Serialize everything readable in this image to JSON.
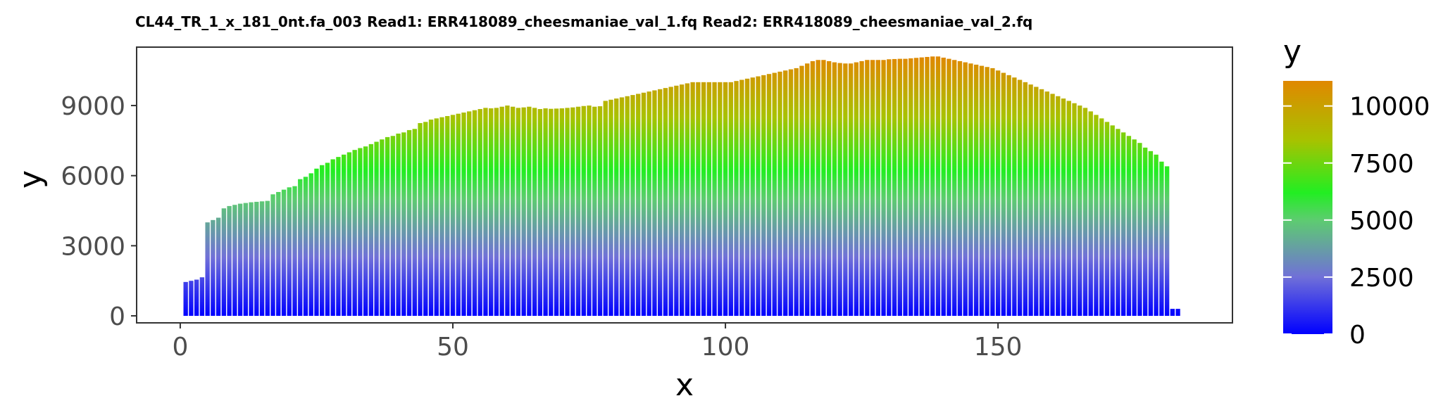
{
  "chart_data": {
    "type": "bar",
    "title": "CL44_TR_1_x_181_0nt.fa_003 Read1: ERR418089_cheesmaniae_val_1.fq Read2: ERR418089_cheesmaniae_val_2.fq",
    "xlabel": "x",
    "ylabel": "y",
    "xlim": [
      -8,
      193
    ],
    "ylim": [
      -300,
      11500
    ],
    "x_ticks": [
      0,
      50,
      100,
      150
    ],
    "y_ticks": [
      0,
      3000,
      6000,
      9000
    ],
    "grid": false,
    "x": [
      1,
      2,
      3,
      4,
      5,
      6,
      7,
      8,
      9,
      10,
      11,
      12,
      13,
      14,
      15,
      16,
      17,
      18,
      19,
      20,
      21,
      22,
      23,
      24,
      25,
      26,
      27,
      28,
      29,
      30,
      31,
      32,
      33,
      34,
      35,
      36,
      37,
      38,
      39,
      40,
      41,
      42,
      43,
      44,
      45,
      46,
      47,
      48,
      49,
      50,
      51,
      52,
      53,
      54,
      55,
      56,
      57,
      58,
      59,
      60,
      61,
      62,
      63,
      64,
      65,
      66,
      67,
      68,
      69,
      70,
      71,
      72,
      73,
      74,
      75,
      76,
      77,
      78,
      79,
      80,
      81,
      82,
      83,
      84,
      85,
      86,
      87,
      88,
      89,
      90,
      91,
      92,
      93,
      94,
      95,
      96,
      97,
      98,
      99,
      100,
      101,
      102,
      103,
      104,
      105,
      106,
      107,
      108,
      109,
      110,
      111,
      112,
      113,
      114,
      115,
      116,
      117,
      118,
      119,
      120,
      121,
      122,
      123,
      124,
      125,
      126,
      127,
      128,
      129,
      130,
      131,
      132,
      133,
      134,
      135,
      136,
      137,
      138,
      139,
      140,
      141,
      142,
      143,
      144,
      145,
      146,
      147,
      148,
      149,
      150,
      151,
      152,
      153,
      154,
      155,
      156,
      157,
      158,
      159,
      160,
      161,
      162,
      163,
      164,
      165,
      166,
      167,
      168,
      169,
      170,
      171,
      172,
      173,
      174,
      175,
      176,
      177,
      178,
      179,
      180,
      181,
      182,
      183
    ],
    "values": [
      1450,
      1500,
      1550,
      1650,
      4000,
      4100,
      4200,
      4600,
      4700,
      4750,
      4800,
      4830,
      4860,
      4880,
      4900,
      4920,
      5200,
      5300,
      5400,
      5500,
      5550,
      5850,
      5950,
      6100,
      6300,
      6450,
      6550,
      6700,
      6800,
      6900,
      7000,
      7100,
      7180,
      7250,
      7350,
      7450,
      7550,
      7650,
      7700,
      7800,
      7850,
      7950,
      8000,
      8250,
      8300,
      8400,
      8450,
      8500,
      8550,
      8600,
      8650,
      8700,
      8750,
      8800,
      8850,
      8900,
      8880,
      8900,
      8950,
      9000,
      8950,
      8900,
      8920,
      8950,
      8900,
      8850,
      8880,
      8860,
      8870,
      8880,
      8900,
      8920,
      8950,
      8980,
      9000,
      8950,
      8970,
      9200,
      9250,
      9300,
      9350,
      9400,
      9450,
      9500,
      9550,
      9600,
      9650,
      9700,
      9750,
      9800,
      9850,
      9900,
      9950,
      10000,
      10000,
      10000,
      10000,
      10000,
      10000,
      10000,
      10000,
      10050,
      10100,
      10150,
      10200,
      10250,
      10300,
      10350,
      10400,
      10450,
      10500,
      10550,
      10600,
      10700,
      10800,
      10900,
      10950,
      10950,
      10900,
      10850,
      10820,
      10800,
      10800,
      10850,
      10900,
      10950,
      10950,
      10950,
      10950,
      10980,
      10990,
      11000,
      11000,
      11020,
      11040,
      11060,
      11080,
      11100,
      11100,
      11050,
      11000,
      10950,
      10900,
      10850,
      10800,
      10750,
      10700,
      10650,
      10600,
      10500,
      10400,
      10300,
      10200,
      10100,
      10000,
      9900,
      9800,
      9700,
      9600,
      9500,
      9400,
      9300,
      9200,
      9100,
      9000,
      8900,
      8750,
      8600,
      8450,
      8300,
      8150,
      8000,
      7850,
      7700,
      7550,
      7400,
      7200,
      7050,
      6900,
      6600,
      6400,
      300,
      300
    ],
    "colorbar": {
      "title": "y",
      "ticks": [
        0,
        2500,
        5000,
        7500,
        10000
      ],
      "max": 11100,
      "colors": [
        {
          "value": 0,
          "color": "#0000ff"
        },
        {
          "value": 2500,
          "color": "#7070d8"
        },
        {
          "value": 5000,
          "color": "#5dcc70"
        },
        {
          "value": 6200,
          "color": "#22ee22"
        },
        {
          "value": 8500,
          "color": "#a8c200"
        },
        {
          "value": 11100,
          "color": "#e08800"
        }
      ]
    }
  }
}
